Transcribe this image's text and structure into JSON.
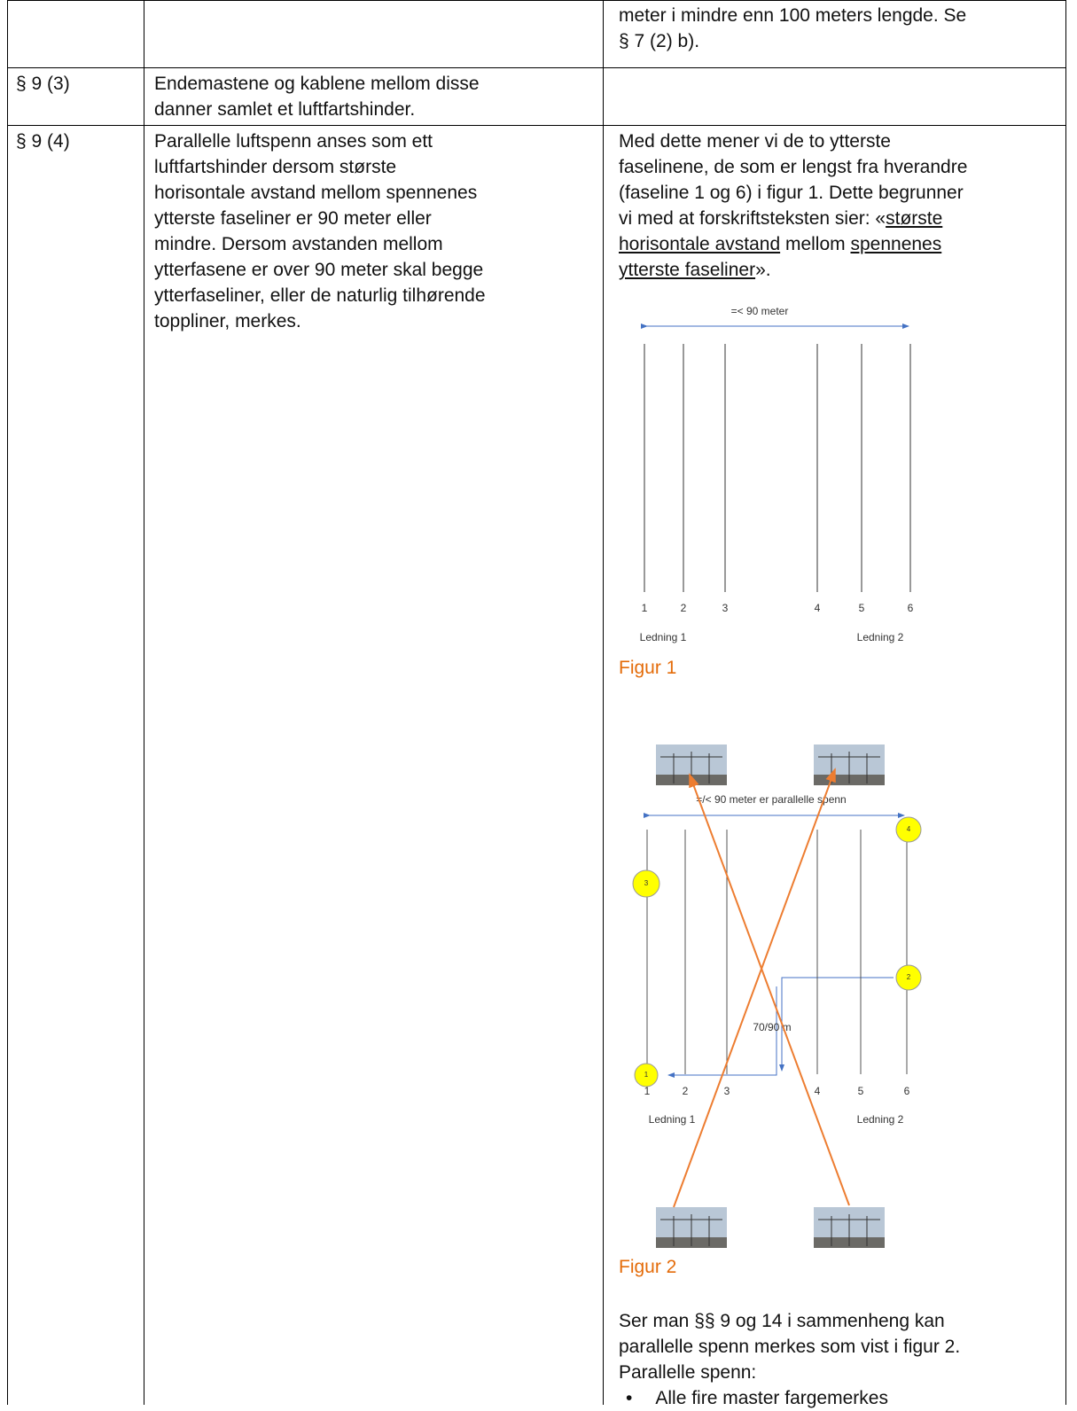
{
  "table": {
    "rows": [
      {
        "section": "",
        "rule_lines": [],
        "comment_lines": [
          "meter i mindre enn 100 meters lengde. Se",
          "§ 7 (2) b)."
        ]
      },
      {
        "section": "§ 9 (3)",
        "rule_lines": [
          "Endemastene og kablene mellom disse",
          "danner samlet et luftfartshinder."
        ],
        "comment_lines": []
      },
      {
        "section": "§ 9 (4)",
        "rule_lines": [
          "Parallelle luftspenn anses som ett",
          "luftfartshinder dersom største",
          "horisontale avstand mellom spennenes",
          "ytterste faseliner er 90 meter eller",
          "mindre. Dersom avstanden mellom",
          "ytterfasene er over 90 meter skal begge",
          "ytterfaseliner, eller de naturlig tilhørende",
          "toppliner, merkes."
        ],
        "comment_lines": [
          [
            "Med dette mener vi de to ytterste"
          ],
          [
            "faselinene, de som er lengst fra hverandre"
          ],
          [
            "(faseline 1 og 6) i figur 1. Dette begrunner"
          ],
          [
            "vi med at forskriftsteksten sier: «",
            {
              "text": "største",
              "underline": true
            }
          ],
          [
            {
              "text": "horisontale avstand",
              "underline": true
            },
            " mellom ",
            {
              "text": "spennenes",
              "underline": true
            }
          ],
          [
            {
              "text": "ytterste faseliner",
              "underline": true
            },
            "»."
          ]
        ],
        "figure1": {
          "span_label": "=< 90 meter",
          "line_numbers": [
            "1",
            "2",
            "3",
            "4",
            "5",
            "6"
          ],
          "group_labels": [
            "Ledning 1",
            "Ledning 2"
          ],
          "caption": "Figur 1"
        },
        "figure2": {
          "span_label": "=/< 90 meter er parallelle spenn",
          "markers": [
            "1",
            "2",
            "3",
            "4"
          ],
          "distance_label": "70/90 m",
          "line_numbers": [
            "1",
            "2",
            "3",
            "4",
            "5",
            "6"
          ],
          "group_labels": [
            "Ledning 1",
            "Ledning 2"
          ],
          "caption": "Figur 2"
        },
        "closing_lines": [
          "Ser man §§ 9 og 14 i sammenheng kan",
          "parallelle spenn merkes som vist i figur 2.",
          "Parallelle spenn:"
        ],
        "bullets": [
          "Alle fire master fargemerkes"
        ]
      }
    ]
  }
}
